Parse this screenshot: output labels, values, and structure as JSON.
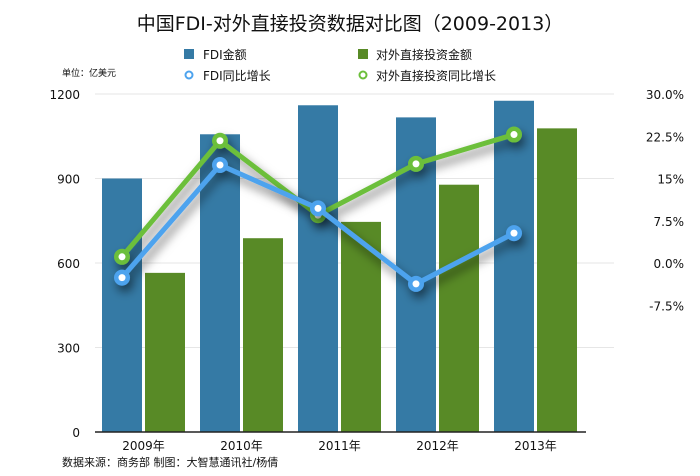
{
  "chart_data": {
    "type": "bar+line",
    "title": "中国FDI-对外直接投资数据对比图（2009-2013）",
    "unit_label": "单位：亿美元",
    "source": "数据来源：商务部  制图：大智慧通讯社/杨倩",
    "categories": [
      "2009年",
      "2010年",
      "2011年",
      "2012年",
      "2013年"
    ],
    "left_axis": {
      "ylim": [
        0,
        1200
      ],
      "ticks": [
        "0",
        "300",
        "600",
        "900",
        "1200"
      ],
      "tick_values": [
        0,
        300,
        600,
        900,
        1200
      ]
    },
    "right_axis": {
      "ylim": [
        -30,
        30
      ],
      "ticks": [
        "30.0%",
        "22.5%",
        "15%",
        "7.5%",
        "0.0%",
        "-7.5%"
      ],
      "tick_values": [
        30,
        22.5,
        15,
        7.5,
        0,
        -7.5
      ]
    },
    "grid": true,
    "legend_placement": "top",
    "bar_series": [
      {
        "name": "FDI金额",
        "color": "#357aa5",
        "values": [
          900,
          1057,
          1160,
          1117,
          1176
        ]
      },
      {
        "name": "对外直接投资金额",
        "color": "#588a26",
        "values": [
          565,
          688,
          746,
          878,
          1078
        ]
      }
    ],
    "line_series": [
      {
        "name": "FDI同比增长",
        "color": "#4da3ee",
        "axis": "right",
        "values": [
          -2.6,
          17.4,
          9.7,
          -3.7,
          5.3
        ]
      },
      {
        "name": "对外直接投资同比增长",
        "color": "#6cbf3b",
        "axis": "right",
        "values": [
          1.1,
          21.7,
          8.5,
          17.6,
          22.8
        ]
      }
    ]
  }
}
